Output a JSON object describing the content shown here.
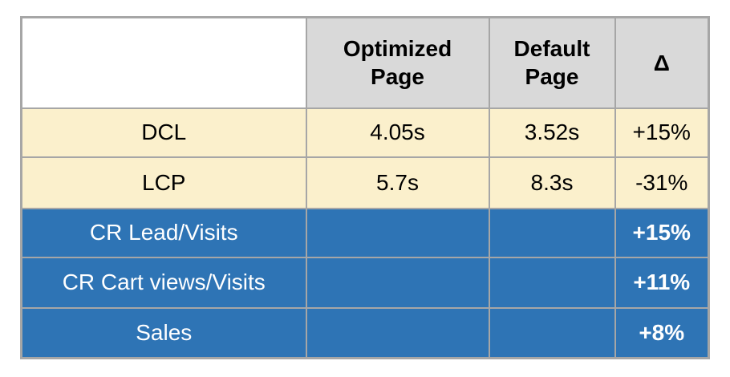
{
  "page": {
    "background_color": "#ffffff"
  },
  "table": {
    "header": {
      "corner": "",
      "optimized": "Optimized Page",
      "default": "Default Page",
      "delta": "Δ"
    },
    "rows": [
      {
        "label": "DCL",
        "optimized": "4.05s",
        "default": "3.52s",
        "delta": "+15%"
      },
      {
        "label": "LCP",
        "optimized": "5.7s",
        "default": "8.3s",
        "delta": "-31%"
      },
      {
        "label": "CR Lead/Visits",
        "optimized": "",
        "default": "",
        "delta": "+15%"
      },
      {
        "label": "CR Cart views/Visits",
        "optimized": "",
        "default": "",
        "delta": "+11%"
      },
      {
        "label": "Sales",
        "optimized": "",
        "default": "",
        "delta": "+8%"
      }
    ],
    "colors": {
      "header_fill": "#d9d9d9",
      "metric_row_fill": "#fbf0cc",
      "conversion_row_fill": "#2e74b5",
      "border": "#a6a6a6",
      "metric_text": "#000000",
      "conversion_text": "#ffffff"
    }
  },
  "chart_data": {
    "type": "table",
    "columns": [
      "",
      "Optimized Page",
      "Default Page",
      "Δ"
    ],
    "rows": [
      [
        "DCL",
        "4.05s",
        "3.52s",
        "+15%"
      ],
      [
        "LCP",
        "5.7s",
        "8.3s",
        "-31%"
      ],
      [
        "CR Lead/Visits",
        "",
        "",
        "+15%"
      ],
      [
        "CR Cart views/Visits",
        "",
        "",
        "+11%"
      ],
      [
        "Sales",
        "",
        "",
        "+8%"
      ]
    ]
  }
}
